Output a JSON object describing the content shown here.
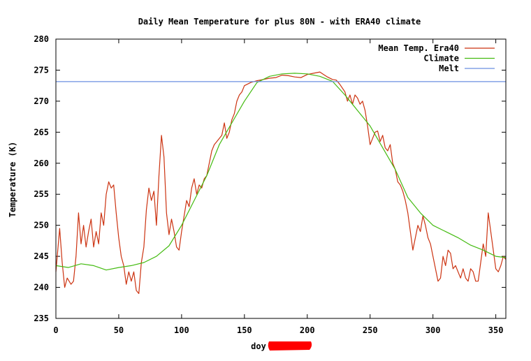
{
  "chart_data": {
    "type": "line",
    "title": "Daily Mean Temperature for plus 80N - with ERA40 climate",
    "xlabel": "doy",
    "ylabel": "Temperature (K)",
    "xlim": [
      0,
      358
    ],
    "ylim": [
      235,
      280
    ],
    "xticks": [
      0,
      50,
      100,
      150,
      200,
      250,
      300,
      350
    ],
    "yticks": [
      235,
      240,
      245,
      250,
      255,
      260,
      265,
      270,
      275,
      280
    ],
    "grid": false,
    "legend_position": "top-right",
    "series": [
      {
        "name": "Mean Temp. Era40",
        "color": "#cc3311",
        "points": [
          [
            0,
            242.5
          ],
          [
            3,
            249.5
          ],
          [
            5,
            244
          ],
          [
            7,
            240
          ],
          [
            9,
            241.5
          ],
          [
            12,
            240.5
          ],
          [
            14,
            241
          ],
          [
            16,
            245
          ],
          [
            18,
            252
          ],
          [
            20,
            247
          ],
          [
            22,
            250
          ],
          [
            24,
            246.5
          ],
          [
            26,
            249
          ],
          [
            28,
            251
          ],
          [
            30,
            246.5
          ],
          [
            32,
            249
          ],
          [
            34,
            247
          ],
          [
            36,
            252
          ],
          [
            38,
            250
          ],
          [
            40,
            255
          ],
          [
            42,
            257
          ],
          [
            44,
            256
          ],
          [
            46,
            256.5
          ],
          [
            48,
            252
          ],
          [
            50,
            248
          ],
          [
            52,
            245
          ],
          [
            54,
            243.5
          ],
          [
            56,
            240.5
          ],
          [
            58,
            242.5
          ],
          [
            60,
            241
          ],
          [
            62,
            242.5
          ],
          [
            64,
            239.5
          ],
          [
            66,
            239
          ],
          [
            68,
            244
          ],
          [
            70,
            246.5
          ],
          [
            72,
            252.5
          ],
          [
            74,
            256
          ],
          [
            76,
            254
          ],
          [
            78,
            255.5
          ],
          [
            80,
            250
          ],
          [
            82,
            258
          ],
          [
            84,
            264.5
          ],
          [
            86,
            261
          ],
          [
            88,
            252
          ],
          [
            90,
            248.5
          ],
          [
            92,
            251
          ],
          [
            94,
            249
          ],
          [
            96,
            246.5
          ],
          [
            98,
            246
          ],
          [
            100,
            249
          ],
          [
            102,
            251.5
          ],
          [
            104,
            254
          ],
          [
            106,
            253
          ],
          [
            108,
            256
          ],
          [
            110,
            257.5
          ],
          [
            112,
            255
          ],
          [
            114,
            256.5
          ],
          [
            116,
            256
          ],
          [
            118,
            257.5
          ],
          [
            120,
            258
          ],
          [
            122,
            260
          ],
          [
            124,
            262
          ],
          [
            126,
            263
          ],
          [
            128,
            263.5
          ],
          [
            130,
            264
          ],
          [
            132,
            264.5
          ],
          [
            134,
            266.5
          ],
          [
            136,
            264
          ],
          [
            138,
            265
          ],
          [
            140,
            267
          ],
          [
            142,
            268
          ],
          [
            144,
            270
          ],
          [
            146,
            271
          ],
          [
            148,
            271.5
          ],
          [
            150,
            272.5
          ],
          [
            155,
            273
          ],
          [
            160,
            273.3
          ],
          [
            165,
            273.5
          ],
          [
            170,
            273.7
          ],
          [
            175,
            273.8
          ],
          [
            180,
            274.2
          ],
          [
            185,
            274.1
          ],
          [
            190,
            273.9
          ],
          [
            195,
            273.8
          ],
          [
            200,
            274.3
          ],
          [
            205,
            274.5
          ],
          [
            210,
            274.7
          ],
          [
            213,
            274.3
          ],
          [
            216,
            273.9
          ],
          [
            220,
            273.5
          ],
          [
            223,
            273.4
          ],
          [
            226,
            272.7
          ],
          [
            230,
            271.5
          ],
          [
            232,
            270
          ],
          [
            234,
            271
          ],
          [
            236,
            269.5
          ],
          [
            238,
            271
          ],
          [
            240,
            270.5
          ],
          [
            242,
            269.5
          ],
          [
            244,
            270
          ],
          [
            246,
            268.5
          ],
          [
            248,
            266
          ],
          [
            250,
            263
          ],
          [
            252,
            264
          ],
          [
            254,
            265
          ],
          [
            256,
            265.2
          ],
          [
            258,
            263.5
          ],
          [
            260,
            264.5
          ],
          [
            262,
            262.5
          ],
          [
            264,
            262
          ],
          [
            266,
            263
          ],
          [
            268,
            260
          ],
          [
            270,
            259
          ],
          [
            272,
            257
          ],
          [
            274,
            256.5
          ],
          [
            276,
            255.5
          ],
          [
            278,
            254
          ],
          [
            280,
            252
          ],
          [
            282,
            249
          ],
          [
            284,
            246
          ],
          [
            286,
            248
          ],
          [
            288,
            250
          ],
          [
            290,
            249
          ],
          [
            292,
            251.5
          ],
          [
            294,
            250
          ],
          [
            296,
            248
          ],
          [
            298,
            247
          ],
          [
            300,
            245
          ],
          [
            302,
            243
          ],
          [
            304,
            241
          ],
          [
            306,
            241.5
          ],
          [
            308,
            245
          ],
          [
            310,
            243.5
          ],
          [
            312,
            246
          ],
          [
            314,
            245.5
          ],
          [
            316,
            243
          ],
          [
            318,
            243.5
          ],
          [
            320,
            242.5
          ],
          [
            322,
            241.5
          ],
          [
            324,
            243
          ],
          [
            326,
            241.5
          ],
          [
            328,
            241
          ],
          [
            330,
            243
          ],
          [
            332,
            242.5
          ],
          [
            334,
            241
          ],
          [
            336,
            241
          ],
          [
            338,
            244
          ],
          [
            340,
            247
          ],
          [
            342,
            245
          ],
          [
            344,
            252
          ],
          [
            346,
            249
          ],
          [
            348,
            246
          ],
          [
            350,
            243
          ],
          [
            352,
            242.5
          ],
          [
            354,
            243.5
          ],
          [
            356,
            245
          ],
          [
            358,
            244.5
          ]
        ]
      },
      {
        "name": "Climate",
        "color": "#44bb11",
        "points": [
          [
            0,
            243.5
          ],
          [
            10,
            243.2
          ],
          [
            20,
            243.8
          ],
          [
            30,
            243.5
          ],
          [
            40,
            242.8
          ],
          [
            50,
            243.2
          ],
          [
            60,
            243.5
          ],
          [
            70,
            244
          ],
          [
            80,
            245
          ],
          [
            90,
            246.7
          ],
          [
            100,
            250
          ],
          [
            110,
            254
          ],
          [
            120,
            258
          ],
          [
            130,
            263
          ],
          [
            140,
            266.5
          ],
          [
            150,
            270
          ],
          [
            160,
            273
          ],
          [
            170,
            274
          ],
          [
            180,
            274.4
          ],
          [
            190,
            274.5
          ],
          [
            200,
            274.4
          ],
          [
            210,
            274
          ],
          [
            220,
            273.2
          ],
          [
            230,
            271
          ],
          [
            240,
            268.5
          ],
          [
            250,
            266
          ],
          [
            260,
            262.5
          ],
          [
            270,
            259
          ],
          [
            280,
            254.5
          ],
          [
            290,
            252
          ],
          [
            300,
            250
          ],
          [
            310,
            249
          ],
          [
            320,
            248
          ],
          [
            330,
            246.8
          ],
          [
            340,
            246
          ],
          [
            350,
            245
          ],
          [
            358,
            244.8
          ]
        ]
      },
      {
        "name": "Melt",
        "color": "#6b8fe0",
        "points": [
          [
            0,
            273.15
          ],
          [
            358,
            273.15
          ]
        ]
      }
    ]
  }
}
